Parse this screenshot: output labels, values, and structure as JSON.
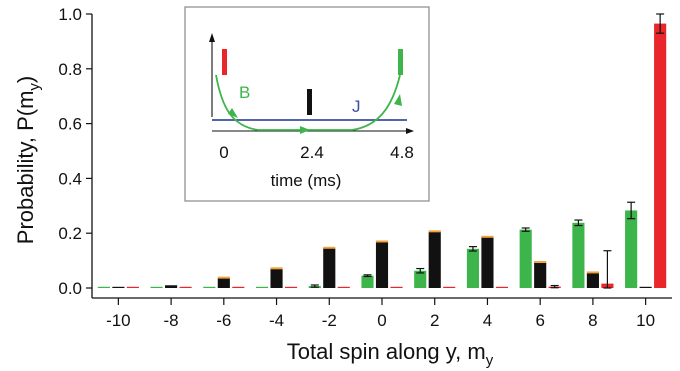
{
  "chart_data": {
    "type": "bar",
    "xlabel": "Total spin along y, m",
    "xlabel_sub": "y",
    "ylabel": "Probability, P(m",
    "ylabel_sub": "y",
    "ylabel_end": ")",
    "ylim": [
      0,
      1.0
    ],
    "xlim": [
      -11,
      11
    ],
    "x_ticks": [
      "-10",
      "-8",
      "-6",
      "-4",
      "-2",
      "0",
      "2",
      "4",
      "6",
      "8",
      "10"
    ],
    "y_ticks": [
      "0.0",
      "0.2",
      "0.4",
      "0.6",
      "0.8",
      "1.0"
    ],
    "colors": {
      "green": "#3db54a",
      "black": "#111111",
      "red": "#e8262b",
      "orange": "#f2a33a",
      "blue": "#3a4fa0"
    },
    "series": [
      {
        "color_key": "green",
        "offset": -0.55,
        "x": [
          -10,
          -8,
          -6,
          -4,
          -2,
          0,
          2,
          4,
          6,
          8,
          10
        ],
        "values": [
          0.0,
          0.0,
          0.0,
          0.001,
          0.007,
          0.045,
          0.063,
          0.143,
          0.213,
          0.238,
          0.283
        ],
        "errors": [
          0,
          0,
          0,
          0,
          0.004,
          0.003,
          0.008,
          0.008,
          0.006,
          0.01,
          0.03
        ]
      },
      {
        "color_key": "black",
        "offset": 0,
        "x": [
          -10,
          -8,
          -6,
          -4,
          -2,
          0,
          2,
          4,
          6,
          8,
          10
        ],
        "values": [
          0.003,
          0.01,
          0.036,
          0.07,
          0.145,
          0.168,
          0.205,
          0.185,
          0.093,
          0.055,
          0.0
        ],
        "errors": [
          0,
          0,
          0,
          0,
          0,
          0,
          0,
          0,
          0,
          0,
          0
        ]
      },
      {
        "color_key": "red",
        "offset": 0.55,
        "x": [
          -10,
          -8,
          -6,
          -4,
          -2,
          0,
          2,
          4,
          6,
          8,
          10
        ],
        "values": [
          0.0,
          0.0,
          0.0,
          0.0,
          0.0,
          0.0,
          0.0,
          0.0,
          0.005,
          0.016,
          0.965
        ],
        "errors": [
          0,
          0,
          0,
          0,
          0,
          0,
          0,
          0,
          0.004,
          0.12,
          0.035
        ]
      }
    ],
    "inset": {
      "xlabel": "time (ms)",
      "x_ticks": [
        "0",
        "2.4",
        "4.8"
      ],
      "label_B": "B",
      "label_J": "J"
    }
  }
}
